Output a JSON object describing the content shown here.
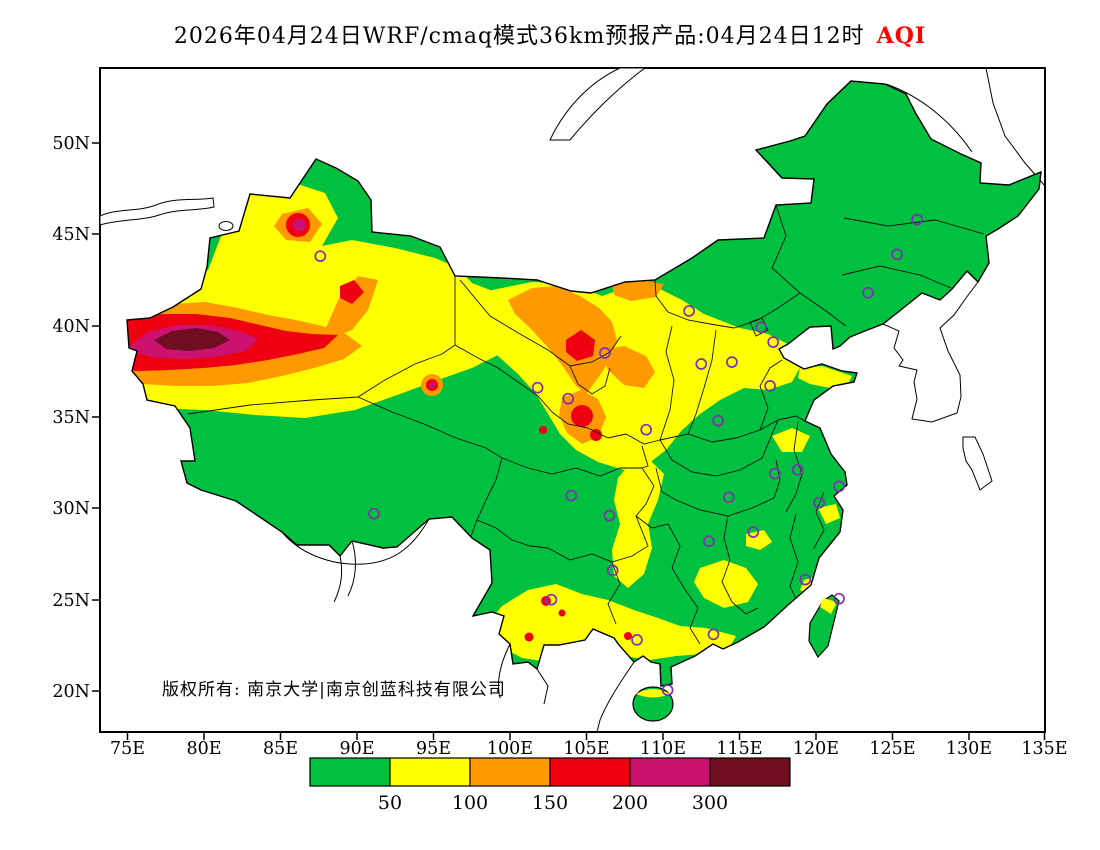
{
  "title": {
    "text": "2026年04月24日WRF/cmaq模式36km预报产品:04月24日12时",
    "variable": "AQI",
    "variable_color": "#FF0000"
  },
  "axes": {
    "y_ticks": [
      "50N",
      "45N",
      "40N",
      "35N",
      "30N",
      "25N",
      "20N"
    ],
    "x_ticks": [
      "75E",
      "80E",
      "85E",
      "90E",
      "95E",
      "100E",
      "105E",
      "110E",
      "115E",
      "120E",
      "125E",
      "130E",
      "135E"
    ]
  },
  "map": {
    "copyright": "版权所有: 南京大学|南京创蓝科技有限公司",
    "marker_color": "#8030B0",
    "markers": [
      [
        126.6,
        45.8
      ],
      [
        125.3,
        43.9
      ],
      [
        123.4,
        41.8
      ],
      [
        111.7,
        40.8
      ],
      [
        116.4,
        39.9
      ],
      [
        117.2,
        39.1
      ],
      [
        114.5,
        38.0
      ],
      [
        112.5,
        37.9
      ],
      [
        117.0,
        36.7
      ],
      [
        113.6,
        34.8
      ],
      [
        108.9,
        34.3
      ],
      [
        106.2,
        38.5
      ],
      [
        103.8,
        36.0
      ],
      [
        101.8,
        36.6
      ],
      [
        87.6,
        43.8
      ],
      [
        91.1,
        29.7
      ],
      [
        104.0,
        30.7
      ],
      [
        106.5,
        29.6
      ],
      [
        106.7,
        26.6
      ],
      [
        102.7,
        25.0
      ],
      [
        108.3,
        22.8
      ],
      [
        113.3,
        23.1
      ],
      [
        110.3,
        20.05
      ],
      [
        113.0,
        28.2
      ],
      [
        115.9,
        28.7
      ],
      [
        114.3,
        30.6
      ],
      [
        117.3,
        31.9
      ],
      [
        118.8,
        32.1
      ],
      [
        121.5,
        31.2
      ],
      [
        120.2,
        30.3
      ],
      [
        119.3,
        26.1
      ],
      [
        121.5,
        25.05
      ]
    ]
  },
  "legend": {
    "labels": [
      "50",
      "100",
      "150",
      "200",
      "300"
    ],
    "colors": [
      "#00C040",
      "#FFFF00",
      "#FF9900",
      "#EE0011",
      "#CC1170",
      "#6E0E20"
    ]
  },
  "chart_data": {
    "type": "heatmap",
    "variable": "AQI",
    "model": "WRF/cmaq 36km",
    "run_date": "2026年04月24日",
    "valid_time": "04月24日12时",
    "levels": [
      50,
      100,
      150,
      200,
      300
    ],
    "level_colors": [
      "#00C040",
      "#FFFF00",
      "#FF9900",
      "#EE0011",
      "#CC1170",
      "#6E0E20"
    ],
    "lon_range": [
      "75E",
      "135E"
    ],
    "lat_range": [
      "20N",
      "50N"
    ],
    "features": [
      "AQI > 300 core over southwestern Tarim Basin (~78-82E, 38-40N)",
      "AQI 200-300 ring and 150-200 band across southern Xinjiang desert",
      "AQI 100-150 over Hexi Corridor / Alxa region (~100-107E, 37-42N) with 150-200 cores",
      "AQI 50-100 across most of northwest and north-central China",
      "Isolated 150-300 spots near 86E/45N and 95E/37N",
      "Scattered 50-100 patches with small 150+ dots over southwest and southern China",
      "AQI < 50 over most of northeast, east and south China"
    ]
  }
}
